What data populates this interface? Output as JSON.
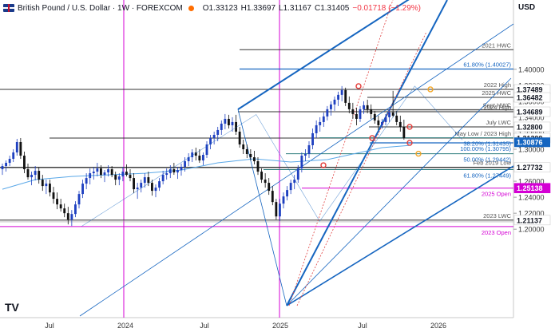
{
  "header": {
    "symbol": "British Pound / U.S. Dollar · 1W · FOREXCOM",
    "open": "O1.33123",
    "high": "H1.33697",
    "low": "L1.31167",
    "close": "C1.31405",
    "change": "−0.01718 (−1.29%)",
    "currency": "USD",
    "logo": "TV"
  },
  "colors": {
    "bull": "#1e40c0",
    "bear": "#111111",
    "trend": "#1565c0",
    "level": "#333333",
    "magenta": "#d400d4",
    "fib": "#2e7d7d",
    "ma": "#5aa8e8",
    "price_tag": "#1565c0",
    "red_dotted": "#e04040",
    "marker_red": "#e53935",
    "marker_orange": "#f5a623"
  },
  "chart_data": {
    "type": "candlestick",
    "x_ticks": [
      "Jul",
      "2024",
      "Jul",
      "2025",
      "Jul",
      "2026"
    ],
    "ylim": [
      1.195,
      1.428
    ],
    "y_ticks": [
      "1.40000",
      "1.38000",
      "1.36000",
      "1.34000",
      "1.32000",
      "1.30000",
      "1.28000",
      "1.26000",
      "1.24000",
      "1.22000",
      "1.20000"
    ],
    "current_price": "1.30876",
    "horizontal_levels": [
      {
        "label": "2021 HWC",
        "value": 1.4245
      },
      {
        "label": "61.80% (1.40027)",
        "value": 1.40027
      },
      {
        "label": "2022 High",
        "value": 1.37489,
        "price_tag": "1.37489"
      },
      {
        "label": "2025 HWC",
        "value": 1.36482,
        "price_tag": "1.36482"
      },
      {
        "label": "Sept HWC",
        "value": 1.3495
      },
      {
        "label": "2024 High",
        "value": 1.34689,
        "price_tag": "1.34689"
      },
      {
        "label": "July LWC",
        "value": 1.328,
        "price_tag": "1.32800"
      },
      {
        "label": "May Low / 2023 High",
        "value": 1.31399,
        "price_tag": "1.31399"
      },
      {
        "label": "38.20% (1.31435)",
        "value": 1.31435
      },
      {
        "label": "100.00% (1.30795)",
        "value": 1.30795
      },
      {
        "label": "50.00% (1.29442)",
        "value": 1.29442
      },
      {
        "label": "Feb 2019 Low",
        "value": 1.27732,
        "price_tag": "1.27732"
      },
      {
        "label": "61.80% (1.27449)",
        "value": 1.27449
      },
      {
        "label": "2025 Open",
        "value": 1.25138,
        "price_tag": "1.25138"
      },
      {
        "label": "2023 LWC",
        "value": 1.21137,
        "price_tag": "1.21137"
      },
      {
        "label": "2023 Open",
        "value": 1.2033
      }
    ],
    "key_points": [
      {
        "date": "2023-10",
        "value": 1.2037
      },
      {
        "date": "2024-09",
        "value": 1.3434
      },
      {
        "date": "2025-01",
        "value": 1.2099
      },
      {
        "date": "2025-07",
        "value": 1.3789
      },
      {
        "date": "2025-10",
        "value": 1.3117
      }
    ],
    "candles": [
      [
        1.275,
        1.282,
        1.268,
        1.279
      ],
      [
        1.279,
        1.286,
        1.272,
        1.283
      ],
      [
        1.283,
        1.292,
        1.279,
        1.288
      ],
      [
        1.288,
        1.3,
        1.284,
        1.296
      ],
      [
        1.296,
        1.313,
        1.292,
        1.309
      ],
      [
        1.309,
        1.314,
        1.288,
        1.292
      ],
      [
        1.292,
        1.297,
        1.27,
        1.275
      ],
      [
        1.275,
        1.282,
        1.262,
        1.265
      ],
      [
        1.265,
        1.272,
        1.255,
        1.268
      ],
      [
        1.268,
        1.279,
        1.261,
        1.273
      ],
      [
        1.273,
        1.277,
        1.257,
        1.262
      ],
      [
        1.262,
        1.268,
        1.248,
        1.254
      ],
      [
        1.254,
        1.262,
        1.244,
        1.257
      ],
      [
        1.257,
        1.262,
        1.241,
        1.246
      ],
      [
        1.246,
        1.253,
        1.232,
        1.238
      ],
      [
        1.238,
        1.246,
        1.225,
        1.231
      ],
      [
        1.231,
        1.238,
        1.222,
        1.226
      ],
      [
        1.226,
        1.232,
        1.215,
        1.22
      ],
      [
        1.22,
        1.228,
        1.206,
        1.212
      ],
      [
        1.212,
        1.224,
        1.204,
        1.219
      ],
      [
        1.219,
        1.235,
        1.215,
        1.231
      ],
      [
        1.231,
        1.248,
        1.226,
        1.244
      ],
      [
        1.244,
        1.262,
        1.239,
        1.257
      ],
      [
        1.257,
        1.27,
        1.25,
        1.264
      ],
      [
        1.264,
        1.276,
        1.256,
        1.27
      ],
      [
        1.27,
        1.278,
        1.262,
        1.272
      ],
      [
        1.272,
        1.283,
        1.266,
        1.276
      ],
      [
        1.276,
        1.28,
        1.264,
        1.268
      ],
      [
        1.268,
        1.274,
        1.259,
        1.271
      ],
      [
        1.271,
        1.28,
        1.266,
        1.275
      ],
      [
        1.275,
        1.279,
        1.265,
        1.268
      ],
      [
        1.268,
        1.272,
        1.255,
        1.262
      ],
      [
        1.262,
        1.27,
        1.255,
        1.266
      ],
      [
        1.266,
        1.278,
        1.26,
        1.272
      ],
      [
        1.272,
        1.281,
        1.266,
        1.268
      ],
      [
        1.268,
        1.275,
        1.26,
        1.264
      ],
      [
        1.264,
        1.27,
        1.245,
        1.25
      ],
      [
        1.25,
        1.258,
        1.238,
        1.252
      ],
      [
        1.252,
        1.262,
        1.246,
        1.258
      ],
      [
        1.258,
        1.27,
        1.252,
        1.265
      ],
      [
        1.265,
        1.272,
        1.254,
        1.258
      ],
      [
        1.258,
        1.262,
        1.242,
        1.248
      ],
      [
        1.248,
        1.256,
        1.24,
        1.252
      ],
      [
        1.252,
        1.264,
        1.248,
        1.26
      ],
      [
        1.26,
        1.273,
        1.256,
        1.268
      ],
      [
        1.268,
        1.276,
        1.262,
        1.27
      ],
      [
        1.27,
        1.28,
        1.264,
        1.275
      ],
      [
        1.275,
        1.283,
        1.268,
        1.271
      ],
      [
        1.271,
        1.278,
        1.263,
        1.274
      ],
      [
        1.274,
        1.282,
        1.267,
        1.278
      ],
      [
        1.278,
        1.29,
        1.272,
        1.285
      ],
      [
        1.285,
        1.295,
        1.279,
        1.29
      ],
      [
        1.29,
        1.3,
        1.284,
        1.296
      ],
      [
        1.296,
        1.302,
        1.286,
        1.292
      ],
      [
        1.292,
        1.3,
        1.283,
        1.286
      ],
      [
        1.286,
        1.296,
        1.28,
        1.293
      ],
      [
        1.293,
        1.31,
        1.289,
        1.306
      ],
      [
        1.306,
        1.318,
        1.3,
        1.314
      ],
      [
        1.314,
        1.322,
        1.306,
        1.318
      ],
      [
        1.318,
        1.328,
        1.31,
        1.324
      ],
      [
        1.324,
        1.336,
        1.318,
        1.332
      ],
      [
        1.332,
        1.344,
        1.325,
        1.338
      ],
      [
        1.338,
        1.343,
        1.326,
        1.33
      ],
      [
        1.33,
        1.34,
        1.322,
        1.334
      ],
      [
        1.334,
        1.343,
        1.318,
        1.322
      ],
      [
        1.322,
        1.328,
        1.302,
        1.306
      ],
      [
        1.306,
        1.312,
        1.294,
        1.3
      ],
      [
        1.3,
        1.306,
        1.289,
        1.294
      ],
      [
        1.294,
        1.3,
        1.286,
        1.29
      ],
      [
        1.29,
        1.298,
        1.281,
        1.285
      ],
      [
        1.285,
        1.29,
        1.268,
        1.272
      ],
      [
        1.272,
        1.276,
        1.258,
        1.262
      ],
      [
        1.262,
        1.27,
        1.252,
        1.258
      ],
      [
        1.258,
        1.264,
        1.243,
        1.248
      ],
      [
        1.248,
        1.254,
        1.23,
        1.234
      ],
      [
        1.234,
        1.238,
        1.212,
        1.216
      ],
      [
        1.216,
        1.238,
        1.21,
        1.232
      ],
      [
        1.232,
        1.246,
        1.226,
        1.241
      ],
      [
        1.241,
        1.254,
        1.236,
        1.249
      ],
      [
        1.249,
        1.262,
        1.244,
        1.258
      ],
      [
        1.258,
        1.268,
        1.25,
        1.262
      ],
      [
        1.262,
        1.28,
        1.258,
        1.276
      ],
      [
        1.276,
        1.296,
        1.271,
        1.292
      ],
      [
        1.292,
        1.3,
        1.285,
        1.294
      ],
      [
        1.294,
        1.31,
        1.289,
        1.305
      ],
      [
        1.305,
        1.326,
        1.3,
        1.32
      ],
      [
        1.32,
        1.336,
        1.314,
        1.33
      ],
      [
        1.33,
        1.34,
        1.322,
        1.334
      ],
      [
        1.334,
        1.346,
        1.328,
        1.341
      ],
      [
        1.341,
        1.354,
        1.336,
        1.35
      ],
      [
        1.35,
        1.36,
        1.342,
        1.356
      ],
      [
        1.356,
        1.366,
        1.348,
        1.362
      ],
      [
        1.362,
        1.372,
        1.354,
        1.368
      ],
      [
        1.368,
        1.379,
        1.36,
        1.374
      ],
      [
        1.374,
        1.377,
        1.354,
        1.358
      ],
      [
        1.358,
        1.366,
        1.345,
        1.35
      ],
      [
        1.35,
        1.358,
        1.338,
        1.344
      ],
      [
        1.344,
        1.352,
        1.33,
        1.338
      ],
      [
        1.338,
        1.354,
        1.334,
        1.35
      ],
      [
        1.35,
        1.36,
        1.344,
        1.355
      ],
      [
        1.355,
        1.362,
        1.345,
        1.35
      ],
      [
        1.35,
        1.356,
        1.338,
        1.344
      ],
      [
        1.344,
        1.348,
        1.332,
        1.336
      ],
      [
        1.336,
        1.342,
        1.324,
        1.33
      ],
      [
        1.33,
        1.338,
        1.326,
        1.334
      ],
      [
        1.334,
        1.344,
        1.33,
        1.34
      ],
      [
        1.34,
        1.35,
        1.334,
        1.346
      ],
      [
        1.346,
        1.373,
        1.34,
        1.342
      ],
      [
        1.342,
        1.348,
        1.33,
        1.334
      ],
      [
        1.334,
        1.342,
        1.322,
        1.328
      ],
      [
        1.328,
        1.337,
        1.312,
        1.314
      ]
    ],
    "moving_average": [
      [
        0,
        1.25
      ],
      [
        9,
        1.262
      ],
      [
        19,
        1.266
      ],
      [
        29,
        1.268
      ],
      [
        39,
        1.27
      ],
      [
        49,
        1.274
      ],
      [
        59,
        1.283
      ],
      [
        69,
        1.288
      ],
      [
        79,
        1.284
      ],
      [
        89,
        1.287
      ],
      [
        99,
        1.297
      ],
      [
        104,
        1.302
      ],
      [
        112,
        1.305
      ]
    ]
  }
}
